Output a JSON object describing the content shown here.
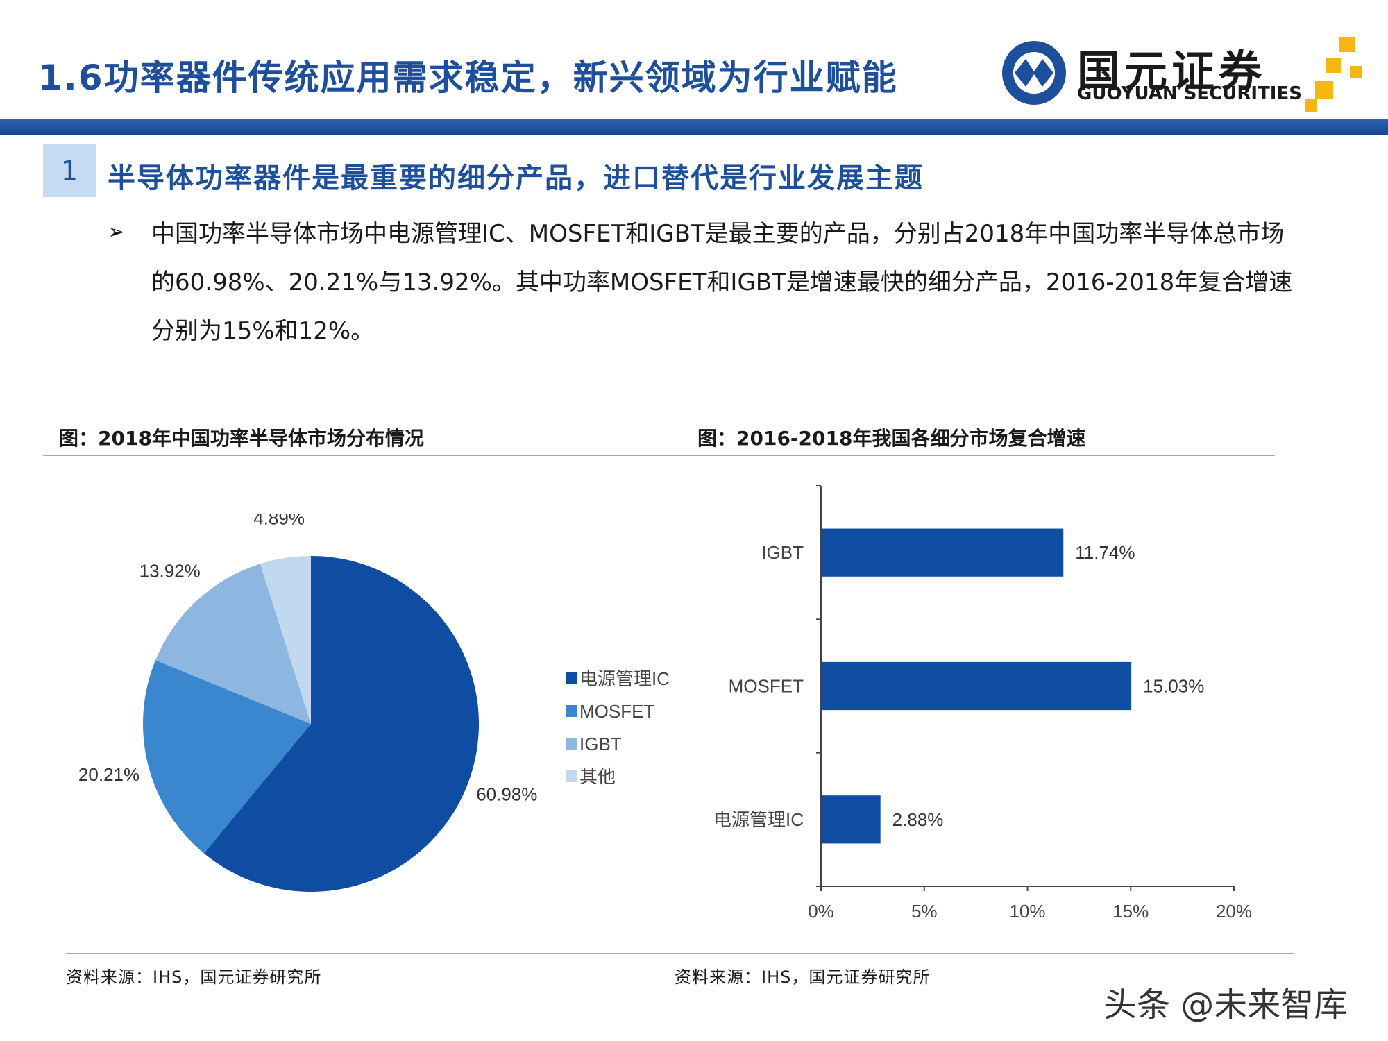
{
  "header": {
    "title": "1.6功率器件传统应用需求稳定，新兴领域为行业赋能",
    "logo_cn": "国元证券",
    "logo_en": "GUOYUAN SECURITIES"
  },
  "section": {
    "number": "1",
    "title": "半导体功率器件是最重要的细分产品，进口替代是行业发展主题"
  },
  "bullet": {
    "arrow": "➢",
    "text": "中国功率半导体市场中电源管理IC、MOSFET和IGBT是最主要的产品，分别占2018年中国功率半导体总市场的60.98%、20.21%与13.92%。其中功率MOSFET和IGBT是增速最快的细分产品，2016-2018年复合增速分别为15%和12%。"
  },
  "fig1": {
    "title": "图：2018年中国功率半导体市场分布情况",
    "source": "资料来源：IHS，国元证券研究所"
  },
  "fig2": {
    "title": "图：2016-2018年我国各细分市场复合增速",
    "source": "资料来源：IHS，国元证券研究所"
  },
  "watermark": "头条 @未来智库",
  "colors": {
    "accent": "#1d4f9c",
    "bar": "#0e4da1"
  },
  "chart_data": [
    {
      "type": "pie",
      "title": "图：2018年中国功率半导体市场分布情况",
      "legend_position": "right",
      "slices": [
        {
          "name": "电源管理IC",
          "value": 60.98,
          "label": "60.98%",
          "color": "#0e4da1"
        },
        {
          "name": "MOSFET",
          "value": 20.21,
          "label": "20.21%",
          "color": "#3a86cf"
        },
        {
          "name": "IGBT",
          "value": 13.92,
          "label": "13.92%",
          "color": "#8db6e0"
        },
        {
          "name": "其他",
          "value": 4.89,
          "label": "4.89%",
          "color": "#c2d8ef"
        }
      ]
    },
    {
      "type": "bar",
      "orientation": "horizontal",
      "title": "图：2016-2018年我国各细分市场复合增速",
      "categories": [
        "IGBT",
        "MOSFET",
        "电源管理IC"
      ],
      "values": [
        11.74,
        15.03,
        2.88
      ],
      "labels": [
        "11.74%",
        "15.03%",
        "2.88%"
      ],
      "xlim": [
        0,
        20
      ],
      "xticks": [
        "0%",
        "5%",
        "10%",
        "15%",
        "20%"
      ],
      "grid": false
    }
  ]
}
